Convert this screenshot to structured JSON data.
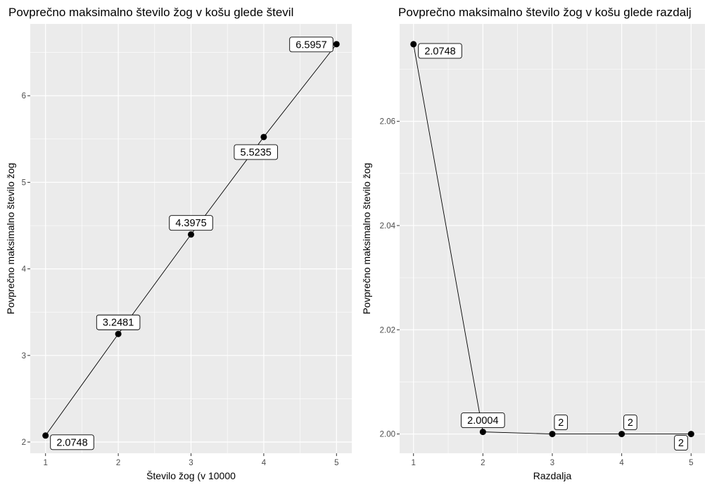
{
  "chart_data": [
    {
      "type": "line",
      "title": "Povprečno maksimalno število žog v košu glede števil",
      "xlabel": "Število žog (v 10000",
      "ylabel": "Povprečno maksimalno število žog",
      "x": [
        1,
        2,
        3,
        4,
        5
      ],
      "series": [
        {
          "values": [
            2.0748,
            3.2481,
            4.3975,
            5.5235,
            6.5957
          ]
        }
      ],
      "data_labels": [
        "2.0748",
        "3.2481",
        "4.3975",
        "5.5235",
        "6.5957"
      ],
      "label_placement": [
        "right",
        "above",
        "above",
        "below",
        "left"
      ],
      "xlim": [
        0.79,
        5.21
      ],
      "ylim": [
        1.87,
        6.83
      ],
      "xticks": [
        1,
        2,
        3,
        4,
        5
      ],
      "xtick_labels": [
        "1",
        "2",
        "3",
        "4",
        "5"
      ],
      "yticks": [
        2,
        3,
        4,
        5,
        6
      ],
      "ytick_labels": [
        "2",
        "3",
        "4",
        "5",
        "6"
      ],
      "grid": true,
      "legend": "none"
    },
    {
      "type": "line",
      "title": "Povprečno maksimalno število žog v košu glede razdalj",
      "xlabel": "Razdalja",
      "ylabel": "Povprečno maksimalno število žog",
      "x": [
        1,
        2,
        3,
        4,
        5
      ],
      "series": [
        {
          "values": [
            2.0748,
            2.0004,
            2.0,
            2.0,
            2.0
          ]
        }
      ],
      "data_labels": [
        "2.0748",
        "2.0004",
        "2",
        "2",
        "2"
      ],
      "label_placement": [
        "right",
        "above",
        "above",
        "above",
        "below-left"
      ],
      "xlim": [
        0.8,
        5.2
      ],
      "ylim": [
        1.9963,
        2.0787
      ],
      "xticks": [
        1,
        2,
        3,
        4,
        5
      ],
      "xtick_labels": [
        "1",
        "2",
        "3",
        "4",
        "5"
      ],
      "yticks": [
        2.0,
        2.02,
        2.04,
        2.06
      ],
      "ytick_labels": [
        "2.00",
        "2.02",
        "2.04",
        "2.06"
      ],
      "grid": true,
      "legend": "none"
    }
  ]
}
